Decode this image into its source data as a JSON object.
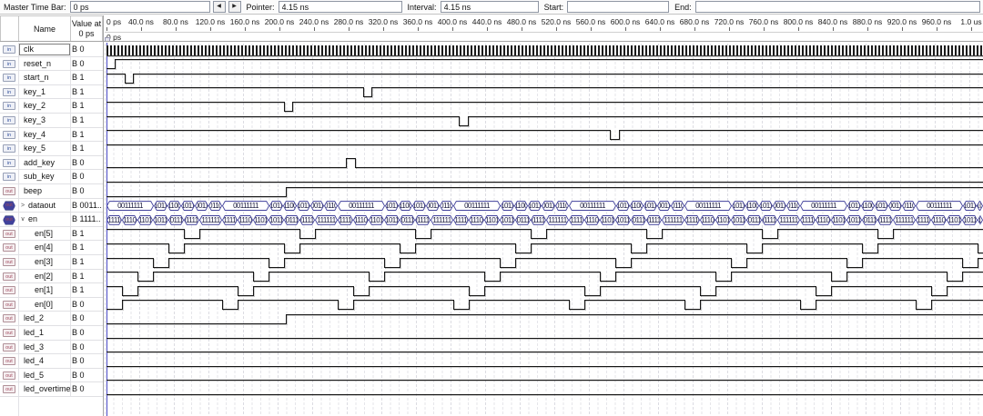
{
  "toolbar": {
    "master_time_bar_label": "Master Time Bar:",
    "master_time_bar_value": "0 ps",
    "back_button": "◀",
    "forward_button": "▶",
    "pointer_label": "Pointer:",
    "pointer_value": "4.15 ns",
    "interval_label": "Interval:",
    "interval_value": "4.15 ns",
    "start_label": "Start:",
    "start_value": "",
    "end_label": "End:",
    "end_value": ""
  },
  "panel_header": {
    "name_col": "Name",
    "value_col_line1": "Value at",
    "value_col_line2": "0 ps"
  },
  "ruler": {
    "labels": [
      "0 ps",
      "40.0 ns",
      "80.0 ns",
      "120.0 ns",
      "160.0 ns",
      "200.0 ns",
      "240.0 ns",
      "280.0 ns",
      "320.0 ns",
      "360.0 ns",
      "400.0 ns",
      "440.0 ns",
      "480.0 ns",
      "520.0 ns",
      "560.0 ns",
      "600.0 ns",
      "640.0 ns",
      "680.0 ns",
      "720.0 ns",
      "760.0 ns",
      "800.0 ns",
      "840.0 ns",
      "880.0 ns",
      "920.0 ns",
      "960.0 ns",
      "1.0 us"
    ],
    "tick_spacing_px": 38,
    "cursor_label": "0 ps"
  },
  "colors": {
    "wave_line": "#161616",
    "bus_outline": "#41419b",
    "cursor": "#4848c4",
    "grid": "#e6e6ea"
  },
  "signals": [
    {
      "icon": "in",
      "name": "clk",
      "value": "B 0",
      "selected": true,
      "wave": {
        "type": "clock"
      }
    },
    {
      "icon": "in",
      "name": "reset_n",
      "value": "B 0",
      "wave": {
        "type": "bit",
        "segments": [
          [
            0,
            9
          ],
          [
            1,
            954
          ]
        ]
      }
    },
    {
      "icon": "in",
      "name": "start_n",
      "value": "B 1",
      "wave": {
        "type": "bit",
        "segments": [
          [
            1,
            20
          ],
          [
            0,
            9
          ],
          [
            1,
            934
          ]
        ]
      }
    },
    {
      "icon": "in",
      "name": "key_1",
      "value": "B 1",
      "wave": {
        "type": "bit",
        "segments": [
          [
            1,
            282
          ],
          [
            0,
            9
          ],
          [
            1,
            672
          ]
        ]
      }
    },
    {
      "icon": "in",
      "name": "key_2",
      "value": "B 1",
      "wave": {
        "type": "bit",
        "segments": [
          [
            1,
            195
          ],
          [
            0,
            9
          ],
          [
            1,
            759
          ]
        ]
      }
    },
    {
      "icon": "in",
      "name": "key_3",
      "value": "B 1",
      "wave": {
        "type": "bit",
        "segments": [
          [
            1,
            387
          ],
          [
            0,
            10
          ],
          [
            1,
            566
          ]
        ]
      }
    },
    {
      "icon": "in",
      "name": "key_4",
      "value": "B 1",
      "wave": {
        "type": "bit",
        "segments": [
          [
            1,
            553
          ],
          [
            0,
            10
          ],
          [
            1,
            400
          ]
        ]
      }
    },
    {
      "icon": "in",
      "name": "key_5",
      "value": "B 1",
      "wave": {
        "type": "bit",
        "segments": [
          [
            1,
            963
          ]
        ]
      }
    },
    {
      "icon": "in",
      "name": "add_key",
      "value": "B 0",
      "wave": {
        "type": "bit",
        "segments": [
          [
            0,
            263
          ],
          [
            1,
            10
          ],
          [
            0,
            690
          ]
        ]
      }
    },
    {
      "icon": "in",
      "name": "sub_key",
      "value": "B 0",
      "wave": {
        "type": "bit",
        "segments": [
          [
            0,
            963
          ]
        ]
      }
    },
    {
      "icon": "out",
      "name": "beep",
      "value": "B 0",
      "wave": {
        "type": "bit",
        "segments": [
          [
            0,
            197
          ],
          [
            1,
            766
          ]
        ]
      }
    },
    {
      "icon": "bus",
      "expander": "collapsed",
      "name": "dataout",
      "value": "B 0011..",
      "wave": {
        "type": "bus",
        "cycle": [
          [
            "00111111",
            52
          ],
          [
            "1011",
            15
          ],
          [
            "1100",
            15
          ],
          [
            "1011",
            15
          ],
          [
            "0011",
            15
          ],
          [
            "0110",
            15
          ]
        ],
        "repeat": 8
      }
    },
    {
      "icon": "bus",
      "expander": "expanded",
      "name": "en",
      "value": "B 1111..",
      "wave": {
        "type": "bus",
        "cycle": [
          [
            "111110",
            17
          ],
          [
            "111101",
            17
          ],
          [
            "111011",
            17
          ],
          [
            "110111",
            17
          ],
          [
            "101111",
            17
          ],
          [
            "011111",
            17
          ],
          [
            "111111",
            25
          ]
        ],
        "repeat": 8
      }
    },
    {
      "icon": "out",
      "indent": 1,
      "name": "en[5]",
      "value": "B 1",
      "wave": {
        "type": "bit",
        "cycle": [
          [
            1,
            85
          ],
          [
            0,
            17
          ],
          [
            1,
            25
          ]
        ],
        "repeat": 8
      }
    },
    {
      "icon": "out",
      "indent": 1,
      "name": "en[4]",
      "value": "B 1",
      "wave": {
        "type": "bit",
        "cycle": [
          [
            1,
            68
          ],
          [
            0,
            17
          ],
          [
            1,
            42
          ]
        ],
        "repeat": 8
      }
    },
    {
      "icon": "out",
      "indent": 1,
      "name": "en[3]",
      "value": "B 1",
      "wave": {
        "type": "bit",
        "cycle": [
          [
            1,
            51
          ],
          [
            0,
            17
          ],
          [
            1,
            59
          ]
        ],
        "repeat": 8
      }
    },
    {
      "icon": "out",
      "indent": 1,
      "name": "en[2]",
      "value": "B 1",
      "wave": {
        "type": "bit",
        "cycle": [
          [
            1,
            34
          ],
          [
            0,
            17
          ],
          [
            1,
            76
          ]
        ],
        "repeat": 8
      }
    },
    {
      "icon": "out",
      "indent": 1,
      "name": "en[1]",
      "value": "B 1",
      "wave": {
        "type": "bit",
        "cycle": [
          [
            1,
            17
          ],
          [
            0,
            17
          ],
          [
            1,
            93
          ]
        ],
        "repeat": 8
      }
    },
    {
      "icon": "out",
      "indent": 1,
      "name": "en[0]",
      "value": "B 0",
      "wave": {
        "type": "bit",
        "cycle": [
          [
            0,
            17
          ],
          [
            1,
            110
          ]
        ],
        "repeat": 8
      }
    },
    {
      "icon": "out",
      "name": "led_2",
      "value": "B 0",
      "wave": {
        "type": "bit",
        "segments": [
          [
            0,
            197
          ],
          [
            1,
            766
          ]
        ]
      }
    },
    {
      "icon": "out",
      "name": "led_1",
      "value": "B 0",
      "wave": {
        "type": "bit",
        "segments": [
          [
            0,
            963
          ]
        ]
      }
    },
    {
      "icon": "out",
      "name": "led_3",
      "value": "B 0",
      "wave": {
        "type": "bit",
        "segments": [
          [
            0,
            963
          ]
        ]
      }
    },
    {
      "icon": "out",
      "name": "led_4",
      "value": "B 0",
      "wave": {
        "type": "bit",
        "segments": [
          [
            0,
            963
          ]
        ]
      }
    },
    {
      "icon": "out",
      "name": "led_5",
      "value": "B 0",
      "wave": {
        "type": "bit",
        "segments": [
          [
            0,
            963
          ]
        ]
      }
    },
    {
      "icon": "out",
      "name": "led_overtime",
      "value": "B 0",
      "wave": {
        "type": "bit",
        "segments": [
          [
            0,
            963
          ]
        ]
      }
    }
  ]
}
